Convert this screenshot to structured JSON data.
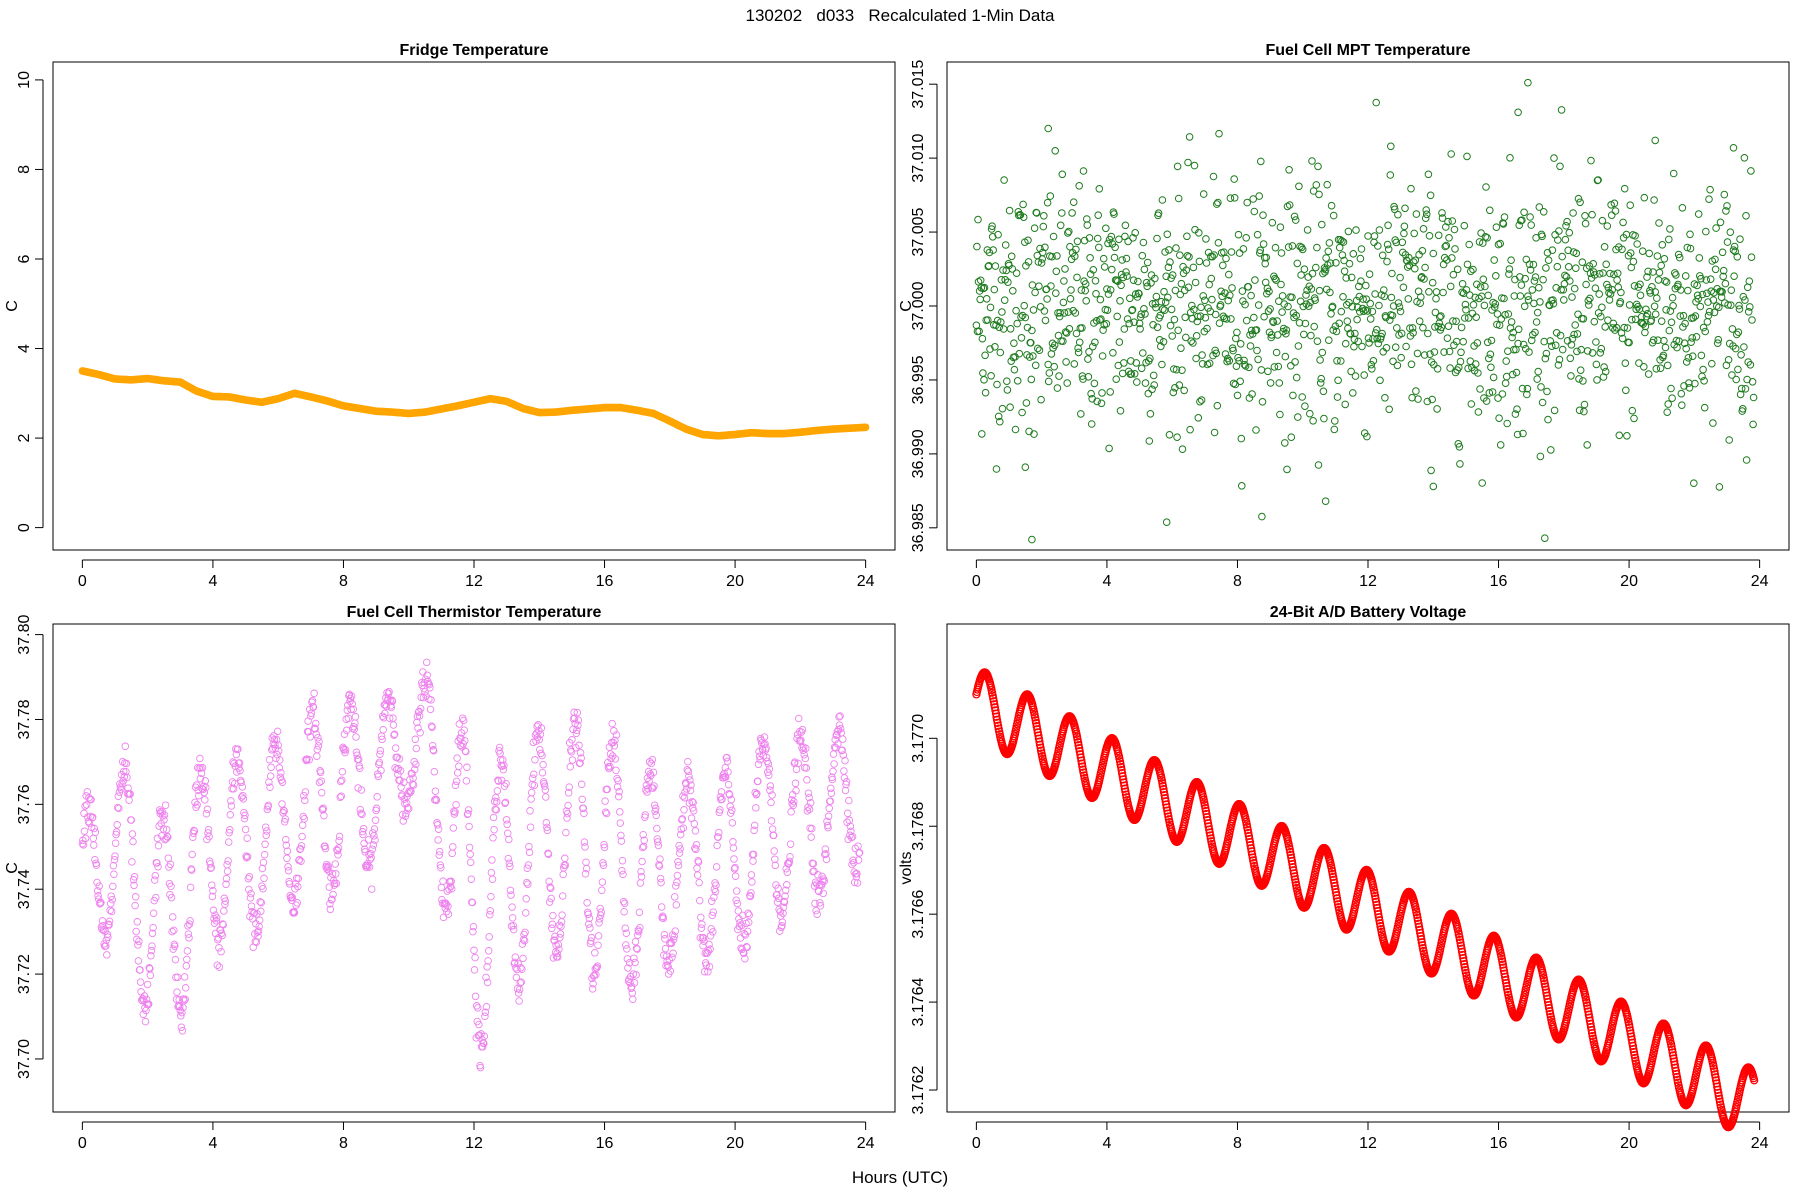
{
  "figure": {
    "title": "130202   d033   Recalculated 1-Min Data",
    "xlabel": "Hours (UTC)"
  },
  "chart_data": [
    {
      "type": "line",
      "title": "Fridge Temperature",
      "ylabel": "C",
      "xlim": [
        -0.9,
        24.9
      ],
      "ylim": [
        -0.5,
        10.4
      ],
      "xticks": [
        0,
        4,
        8,
        12,
        16,
        20,
        24
      ],
      "yticks": [
        0,
        2,
        4,
        6,
        8,
        10
      ],
      "ytick_decimals": 0,
      "color": "#FFA500",
      "x": [
        0,
        0.5,
        1,
        1.5,
        2,
        2.5,
        3,
        3.5,
        4,
        4.5,
        5,
        5.5,
        6,
        6.5,
        7,
        7.5,
        8,
        8.5,
        9,
        9.5,
        10,
        10.5,
        11,
        11.5,
        12,
        12.5,
        13,
        13.5,
        14,
        14.5,
        15,
        15.5,
        16,
        16.5,
        17,
        17.5,
        18,
        18.5,
        19,
        19.5,
        20,
        20.5,
        21,
        21.5,
        22,
        22.5,
        23,
        23.5,
        24
      ],
      "values": [
        3.5,
        3.42,
        3.32,
        3.3,
        3.33,
        3.28,
        3.25,
        3.05,
        2.93,
        2.92,
        2.85,
        2.8,
        2.88,
        3.0,
        2.92,
        2.83,
        2.72,
        2.66,
        2.6,
        2.58,
        2.55,
        2.58,
        2.65,
        2.72,
        2.8,
        2.88,
        2.82,
        2.66,
        2.57,
        2.58,
        2.62,
        2.65,
        2.68,
        2.68,
        2.62,
        2.55,
        2.38,
        2.2,
        2.08,
        2.05,
        2.08,
        2.12,
        2.1,
        2.1,
        2.13,
        2.17,
        2.2,
        2.22,
        2.24
      ]
    },
    {
      "type": "scatter",
      "title": "Fuel Cell MPT Temperature",
      "ylabel": "C",
      "xlim": [
        -0.9,
        24.9
      ],
      "ylim": [
        36.9835,
        37.0165
      ],
      "xticks": [
        0,
        4,
        8,
        12,
        16,
        20,
        24
      ],
      "yticks": [
        36.985,
        36.99,
        36.995,
        37.0,
        37.005,
        37.01,
        37.015
      ],
      "ytick_decimals": 3,
      "color": "#1E7B1E",
      "generator": "random scatter around 37.000 with sd 0.0042, one point per minute (~1430 points), extreme points included",
      "center": 37.0,
      "spread": 0.0042,
      "points_count": 1430,
      "extremes": [
        [
          1.7,
          36.9842
        ],
        [
          16.9,
          37.0151
        ],
        [
          2.2,
          37.012
        ],
        [
          16.6,
          37.0131
        ],
        [
          20.8,
          37.0112
        ],
        [
          12.7,
          37.0108
        ],
        [
          23.2,
          37.0107
        ],
        [
          10.7,
          36.9868
        ],
        [
          14.0,
          36.9878
        ],
        [
          1.5,
          36.9891
        ]
      ]
    },
    {
      "type": "scatter",
      "title": "Fuel Cell Thermistor Temperature",
      "ylabel": "C",
      "xlim": [
        -0.9,
        24.9
      ],
      "ylim": [
        37.6875,
        37.8025
      ],
      "xticks": [
        0,
        4,
        8,
        12,
        16,
        20,
        24
      ],
      "yticks": [
        37.7,
        37.72,
        37.74,
        37.76,
        37.78,
        37.8
      ],
      "ytick_decimals": 2,
      "color": "#EE82EE",
      "generator": "fast oscillation (~1.15 h period) around a slowly varying baseline, ~1430 points",
      "baseline_x": [
        0,
        1,
        2,
        3,
        4,
        5,
        6,
        7,
        8,
        9,
        10,
        11,
        12,
        13,
        14,
        15,
        16,
        17,
        18,
        19,
        20,
        21,
        22,
        23,
        24
      ],
      "baseline_y": [
        37.738,
        37.752,
        37.732,
        37.735,
        37.75,
        37.748,
        37.755,
        37.76,
        37.762,
        37.765,
        37.775,
        37.765,
        37.735,
        37.742,
        37.752,
        37.752,
        37.748,
        37.742,
        37.745,
        37.745,
        37.745,
        37.755,
        37.755,
        37.758,
        37.765
      ],
      "amplitude_x": [
        0,
        3,
        6,
        8,
        10,
        12,
        14,
        16,
        18,
        20,
        24
      ],
      "amplitude_y": [
        0.02,
        0.025,
        0.02,
        0.022,
        0.015,
        0.035,
        0.025,
        0.03,
        0.022,
        0.022,
        0.018
      ],
      "period_hours": 1.15
    },
    {
      "type": "line",
      "title": "24-Bit A/D Battery Voltage",
      "ylabel": "volts",
      "xlim": [
        -0.9,
        24.9
      ],
      "ylim": [
        3.17615,
        3.17726
      ],
      "xticks": [
        0,
        4,
        8,
        12,
        16,
        20,
        24
      ],
      "yticks": [
        3.1762,
        3.1764,
        3.1766,
        3.1768,
        3.177
      ],
      "ytick_decimals": 4,
      "color": "#FF0000",
      "generator": "linear decline with ~1.3 h oscillation, drawn as dense circles",
      "start": 3.17708,
      "slope_per_hour": -3.84e-05,
      "oscillation_amplitude": 8e-05,
      "period_hours": 1.3
    }
  ]
}
